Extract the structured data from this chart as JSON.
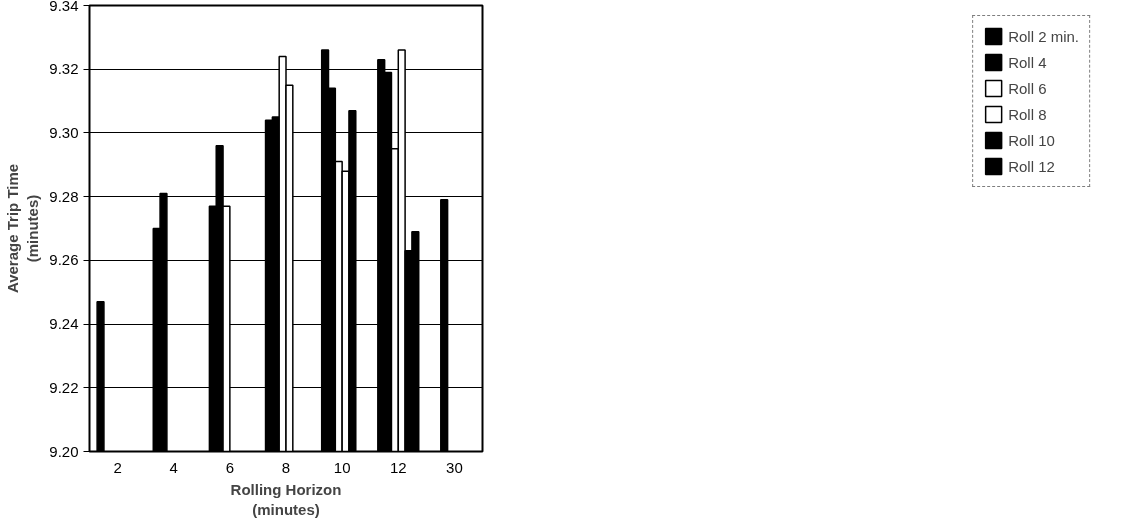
{
  "chart_data": {
    "type": "bar",
    "xlabel": "Rolling Horizon\n(minutes)",
    "ylabel": "Average Trip Time\n(minutes)",
    "categories": [
      "2",
      "4",
      "6",
      "8",
      "10",
      "12",
      "30"
    ],
    "series": [
      {
        "name": "Roll 2 min.",
        "color": "#000000",
        "values": [
          9.247,
          9.27,
          9.277,
          9.304,
          9.326,
          9.323,
          null
        ]
      },
      {
        "name": "Roll 4",
        "color": "#000000",
        "values": [
          null,
          9.281,
          9.296,
          9.305,
          9.314,
          9.319,
          9.279
        ]
      },
      {
        "name": "Roll 6",
        "color": "#ffffff",
        "values": [
          null,
          null,
          9.277,
          9.324,
          9.291,
          9.295,
          null
        ]
      },
      {
        "name": "Roll 8",
        "color": "#ffffff",
        "values": [
          null,
          null,
          null,
          9.315,
          9.288,
          9.326,
          null
        ]
      },
      {
        "name": "Roll 10",
        "color": "#000000",
        "values": [
          null,
          null,
          null,
          null,
          9.307,
          9.263,
          null
        ]
      },
      {
        "name": "Roll 12",
        "color": "#000000",
        "values": [
          null,
          null,
          null,
          null,
          null,
          9.269,
          null
        ]
      }
    ],
    "ylim": [
      9.2,
      9.34
    ],
    "yticks": [
      {
        "value": 9.2,
        "label": "9.20"
      },
      {
        "value": 9.22,
        "label": "9.22"
      },
      {
        "value": 9.24,
        "label": "9.24"
      },
      {
        "value": 9.26,
        "label": "9.26"
      },
      {
        "value": 9.28,
        "label": "9.28"
      },
      {
        "value": 9.3,
        "label": "9.30"
      },
      {
        "value": 9.32,
        "label": "9.32"
      },
      {
        "value": 9.34,
        "label": "9.34"
      }
    ],
    "grid": "y",
    "legend": "right"
  }
}
